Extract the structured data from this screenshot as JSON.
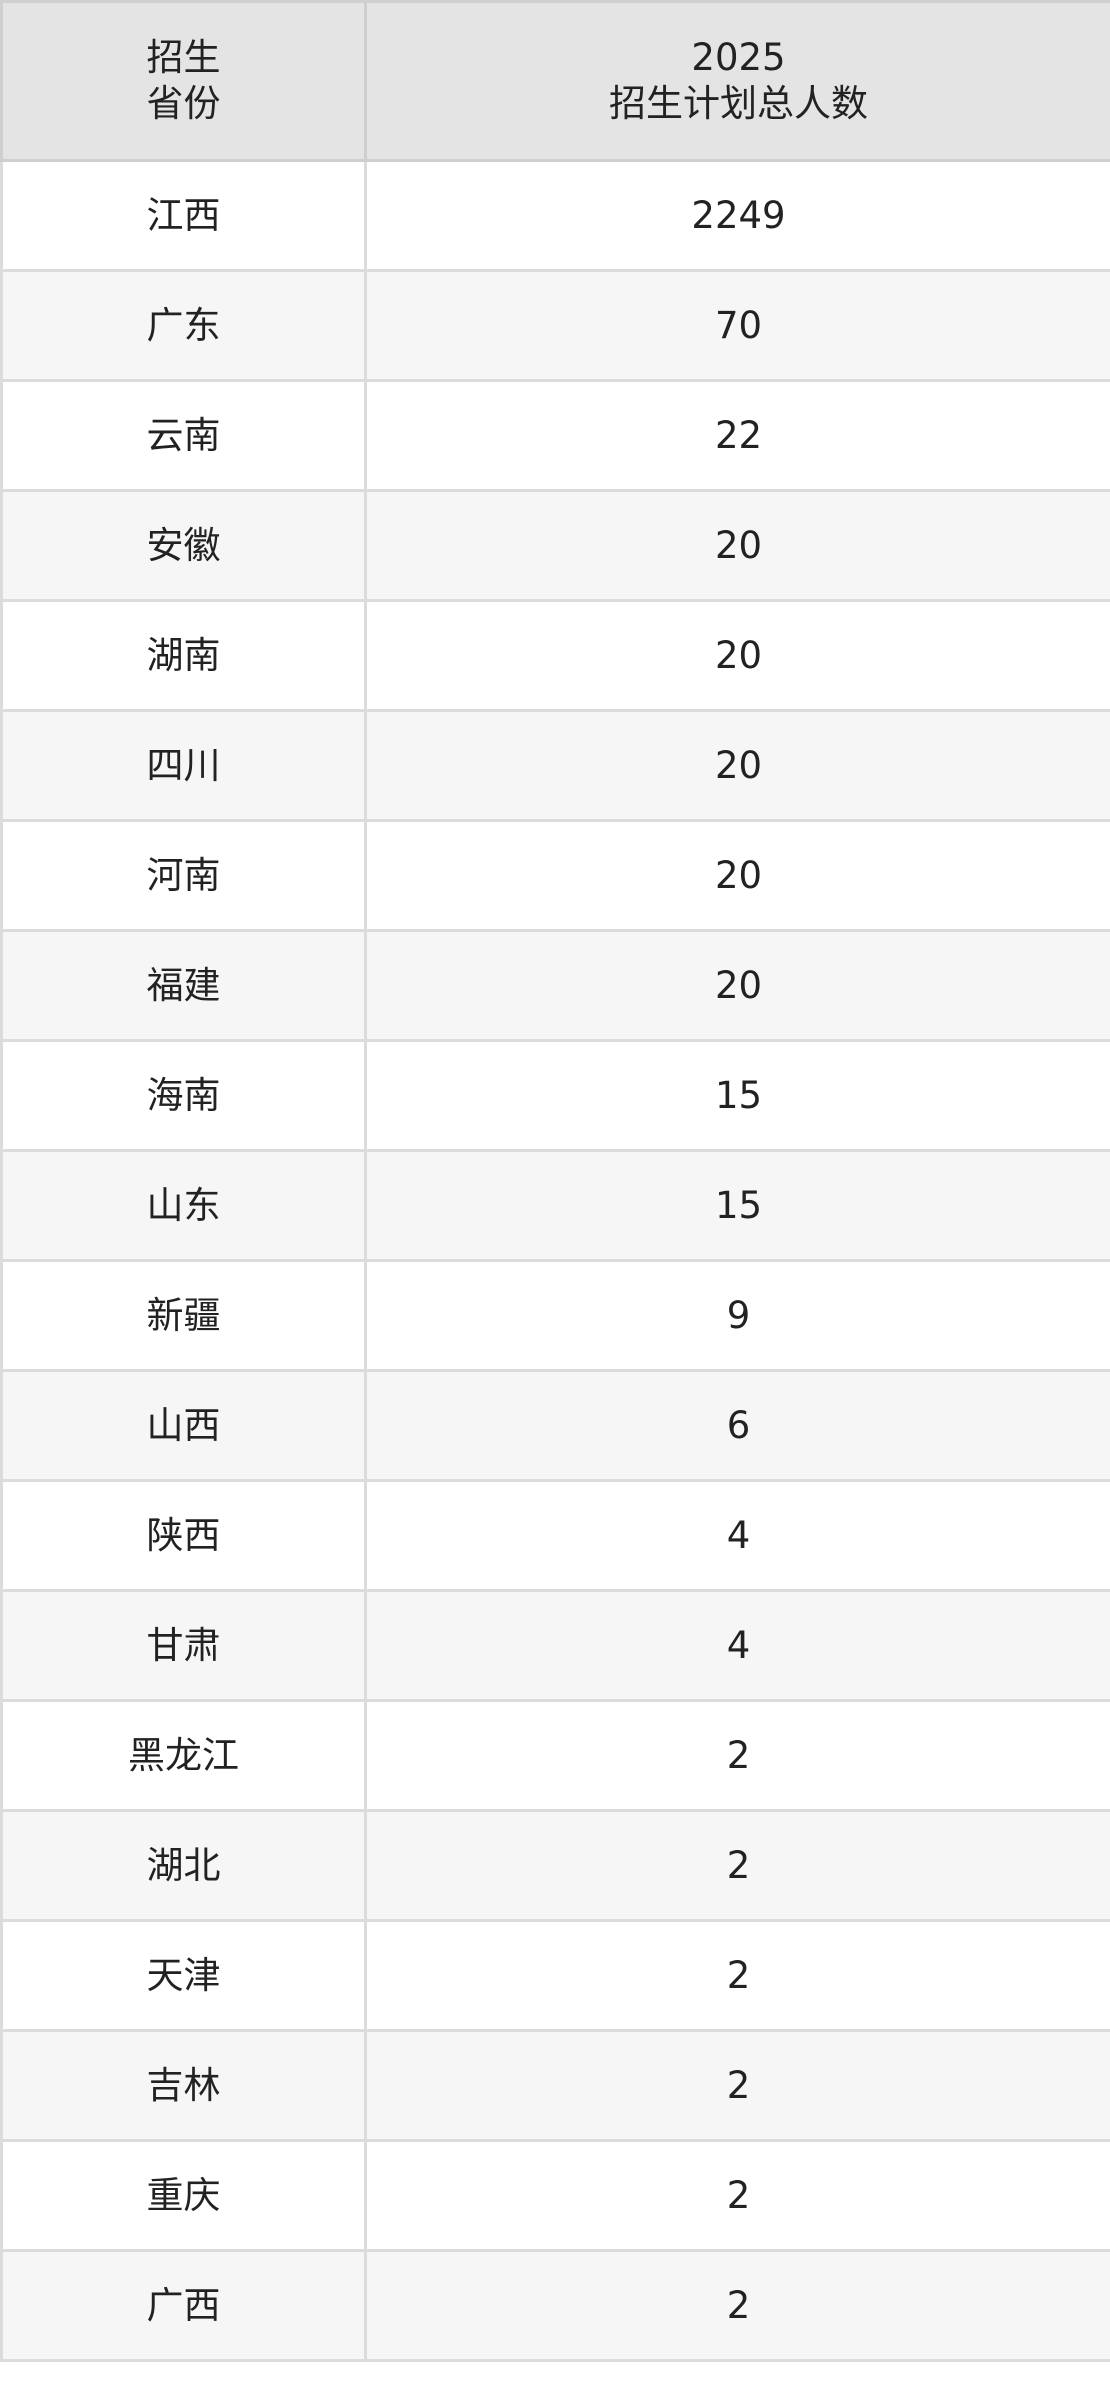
{
  "header": {
    "col1_line1": "招生",
    "col1_line2": "省份",
    "col2_line1": "2025",
    "col2_line2": "招生计划总人数"
  },
  "rows": [
    {
      "province": "江西",
      "count": "2249"
    },
    {
      "province": "广东",
      "count": "70"
    },
    {
      "province": "云南",
      "count": "22"
    },
    {
      "province": "安徽",
      "count": "20"
    },
    {
      "province": "湖南",
      "count": "20"
    },
    {
      "province": "四川",
      "count": "20"
    },
    {
      "province": "河南",
      "count": "20"
    },
    {
      "province": "福建",
      "count": "20"
    },
    {
      "province": "海南",
      "count": "15"
    },
    {
      "province": "山东",
      "count": "15"
    },
    {
      "province": "新疆",
      "count": "9"
    },
    {
      "province": "山西",
      "count": "6"
    },
    {
      "province": "陕西",
      "count": "4"
    },
    {
      "province": "甘肃",
      "count": "4"
    },
    {
      "province": "黑龙江",
      "count": "2"
    },
    {
      "province": "湖北",
      "count": "2"
    },
    {
      "province": "天津",
      "count": "2"
    },
    {
      "province": "吉林",
      "count": "2"
    },
    {
      "province": "重庆",
      "count": "2"
    },
    {
      "province": "广西",
      "count": "2"
    }
  ]
}
